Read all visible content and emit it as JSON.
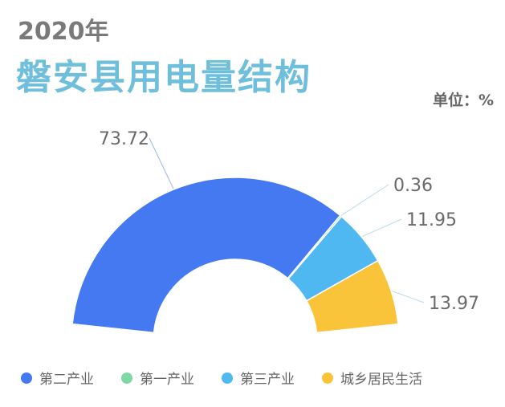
{
  "header": {
    "subtitle": "2020年",
    "title": "磐安县用电量结构",
    "unit": "单位：%"
  },
  "colors": {
    "accent_title": "#6fbfdc",
    "series": [
      "#4479f2",
      "#7ed8a4",
      "#4fb8f0",
      "#f9c43a"
    ]
  },
  "chart_data": {
    "type": "pie",
    "variant": "half-donut",
    "title": "磐安县用电量结构",
    "subtitle": "2020年",
    "unit": "单位：%",
    "legend_position": "bottom",
    "categories": [
      "第二产业",
      "第一产业",
      "第三产业",
      "城乡居民生活"
    ],
    "values": [
      73.72,
      0.36,
      11.95,
      13.97
    ],
    "labels": [
      "73.72",
      "0.36",
      "11.95",
      "13.97"
    ]
  }
}
